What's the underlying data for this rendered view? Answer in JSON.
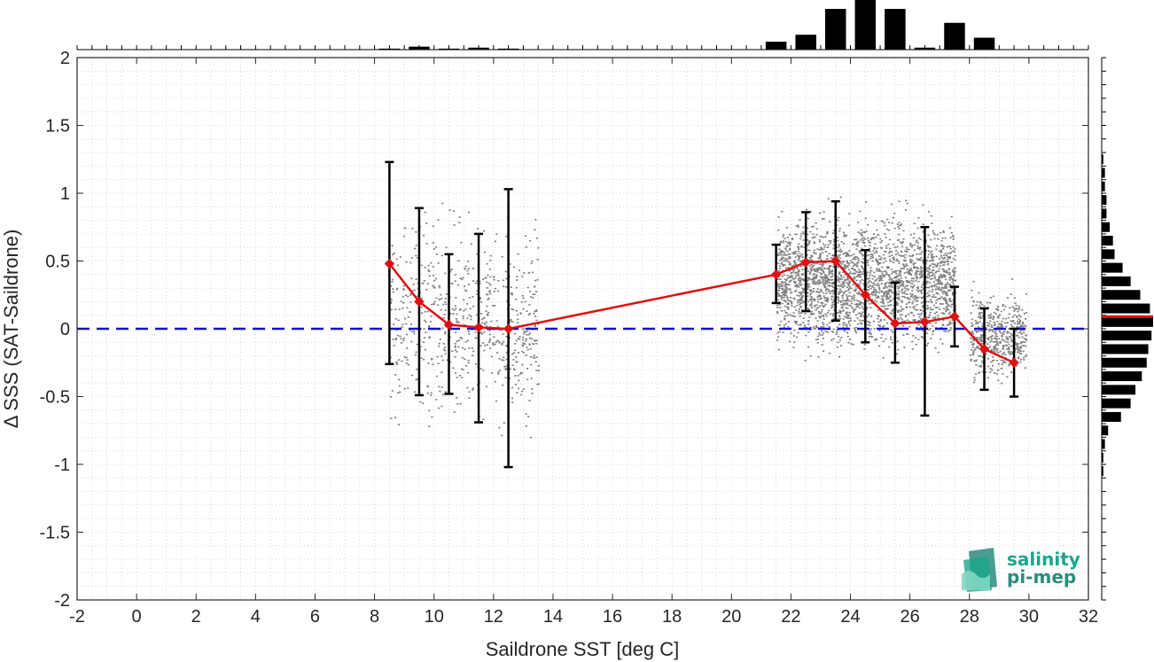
{
  "chart_data": {
    "type": "scatter",
    "xlabel": "Saildrone SST [deg C]",
    "ylabel": "Δ SSS (SAT-Saildrone)",
    "xlim": [
      -2,
      32
    ],
    "ylim": [
      -2,
      2
    ],
    "xticks": [
      -2,
      0,
      2,
      4,
      6,
      8,
      10,
      12,
      14,
      16,
      18,
      20,
      22,
      24,
      26,
      28,
      30,
      32
    ],
    "yticks": [
      -2,
      -1.5,
      -1,
      -0.5,
      0,
      0.5,
      1,
      1.5,
      2
    ],
    "grid": true,
    "reference_line": {
      "y": 0,
      "color": "#1010d0",
      "style": "dashed"
    },
    "scatter_color": "#808080",
    "scatter_clusters": [
      {
        "x_range": [
          8.5,
          13.5
        ],
        "y_center": 0.05,
        "y_spread": 0.6
      },
      {
        "x_range": [
          21.5,
          27.5
        ],
        "y_center": 0.35,
        "y_spread": 0.38
      },
      {
        "x_range": [
          28.0,
          29.9
        ],
        "y_center": -0.05,
        "y_spread": 0.25
      }
    ],
    "binned_mean": {
      "color": "#e01010",
      "marker": "diamond",
      "x": [
        8.5,
        9.5,
        10.5,
        11.5,
        12.5,
        21.5,
        22.5,
        23.5,
        24.5,
        25.5,
        26.5,
        27.5,
        28.5,
        29.5
      ],
      "y": [
        0.48,
        0.2,
        0.03,
        0.01,
        0.0,
        0.4,
        0.49,
        0.5,
        0.25,
        0.04,
        0.05,
        0.09,
        -0.15,
        -0.25
      ],
      "err_low": [
        -0.26,
        -0.49,
        -0.48,
        -0.69,
        -1.02,
        0.19,
        0.13,
        0.06,
        -0.1,
        -0.25,
        -0.64,
        -0.13,
        -0.45,
        -0.5
      ],
      "err_high": [
        1.23,
        0.89,
        0.55,
        0.7,
        1.03,
        0.62,
        0.86,
        0.94,
        0.58,
        0.34,
        0.75,
        0.31,
        0.15,
        0.0
      ]
    },
    "top_histogram": {
      "bin_width": 1,
      "bin_centers": [
        8.5,
        9.5,
        10.5,
        11.5,
        12.5,
        21.5,
        22.5,
        23.5,
        24.5,
        25.5,
        26.5,
        27.5,
        28.5,
        29.5
      ],
      "counts": [
        1,
        3,
        1,
        2,
        1,
        8,
        15,
        41,
        50,
        41,
        2,
        27,
        12,
        0
      ]
    },
    "right_histogram": {
      "bin_width": 0.1,
      "bin_centers": [
        1.25,
        1.15,
        1.05,
        0.95,
        0.85,
        0.75,
        0.65,
        0.55,
        0.45,
        0.35,
        0.25,
        0.15,
        0.05,
        -0.05,
        -0.15,
        -0.25,
        -0.35,
        -0.45,
        -0.55,
        -0.65,
        -0.75,
        -0.85,
        -0.95,
        -1.05
      ],
      "counts": [
        1,
        2,
        2,
        3,
        3,
        5,
        7,
        8,
        13,
        18,
        24,
        30,
        32,
        31,
        29,
        28,
        25,
        21,
        18,
        12,
        4,
        2,
        1,
        1
      ],
      "mean_line_y": 0.09,
      "mean_line_color": "#e01010"
    }
  },
  "logo": {
    "line1": "salinity",
    "line2": "pi-mep",
    "color_primary": "#1aa68c",
    "color_secondary": "#2a8c7c"
  }
}
